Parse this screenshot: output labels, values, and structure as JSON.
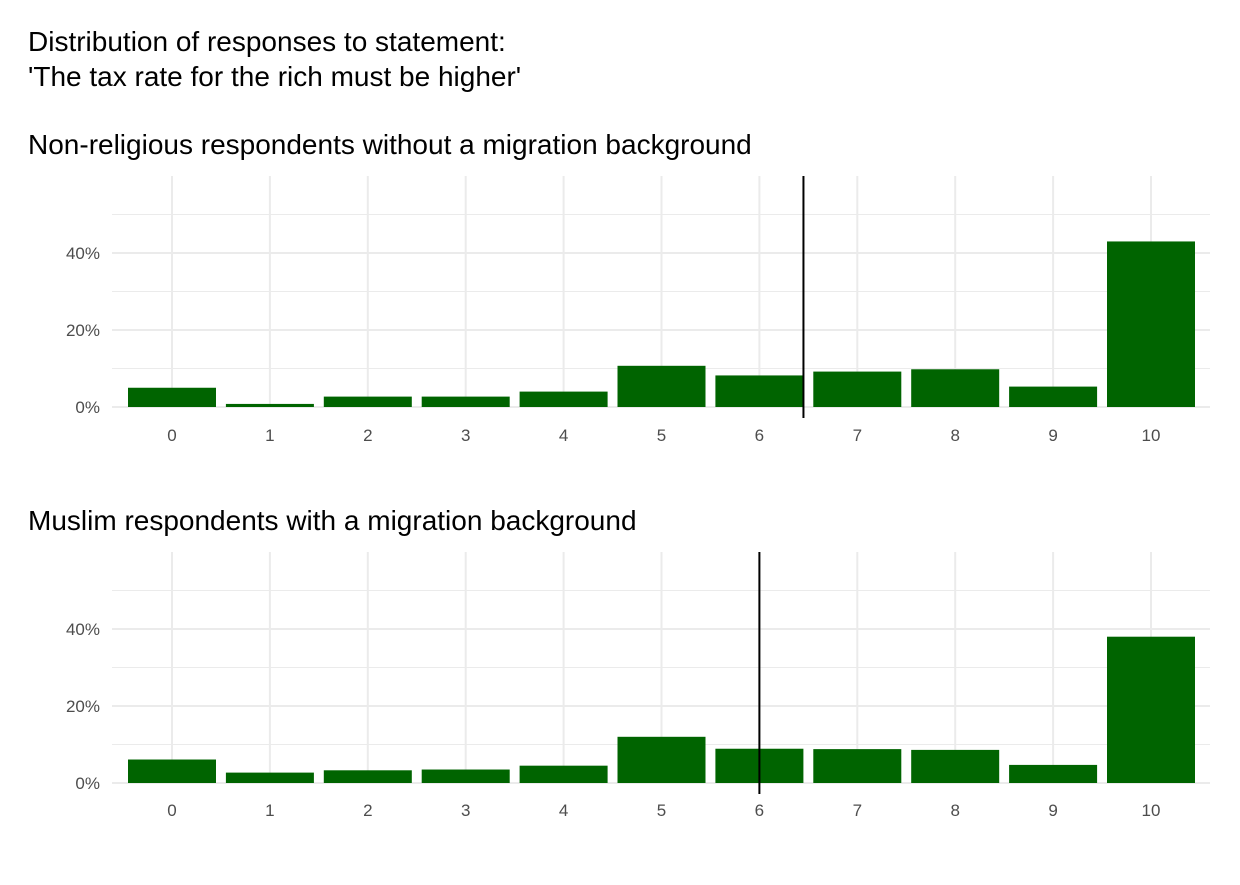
{
  "title_lines": [
    "Distribution of responses to statement:",
    "'The tax rate for the rich must be higher'"
  ],
  "colors": {
    "bar": "#006400",
    "grid": "#ebebeb",
    "reference_line": "#000000",
    "tick_text": "#4d4d4d"
  },
  "chart_data": [
    {
      "type": "bar",
      "title": "Non-religious respondents without a migration background",
      "categories": [
        "0",
        "1",
        "2",
        "3",
        "4",
        "5",
        "6",
        "7",
        "8",
        "9",
        "10"
      ],
      "values": [
        5,
        0.8,
        2.7,
        2.7,
        4,
        10.7,
        8.2,
        9.2,
        9.8,
        5.3,
        43
      ],
      "ylim": [
        0,
        60
      ],
      "y_ticks": [
        0,
        20,
        40
      ],
      "y_tick_labels": [
        "0%",
        "20%",
        "40%"
      ],
      "reference_x": 6.45,
      "xlabel": "",
      "ylabel": "",
      "grid": true,
      "legend": "none"
    },
    {
      "type": "bar",
      "title": "Muslim respondents with a migration background",
      "categories": [
        "0",
        "1",
        "2",
        "3",
        "4",
        "5",
        "6",
        "7",
        "8",
        "9",
        "10"
      ],
      "values": [
        6.1,
        2.7,
        3.3,
        3.5,
        4.5,
        12,
        8.9,
        8.8,
        8.6,
        4.7,
        38
      ],
      "ylim": [
        0,
        60
      ],
      "y_ticks": [
        0,
        20,
        40
      ],
      "y_tick_labels": [
        "0%",
        "20%",
        "40%"
      ],
      "reference_x": 6.0,
      "xlabel": "",
      "ylabel": "",
      "grid": true,
      "legend": "none"
    }
  ]
}
